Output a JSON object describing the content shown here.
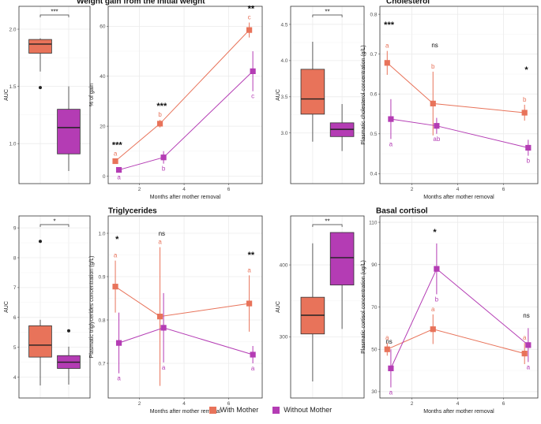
{
  "colors": {
    "with": "#e8735a",
    "without": "#b43cb4",
    "grid": "#ebebeb",
    "frame": "#333333"
  },
  "legend": {
    "with_label": "With Mother",
    "without_label": "Without Mother"
  },
  "shared_xlabel": "Months after mother removal",
  "chart_data": [
    {
      "id": "wg_box",
      "type": "box",
      "ylabel": "AUC",
      "ylim": [
        0.65,
        2.2
      ],
      "yticks": [
        "1.0",
        "1.5",
        "2.0"
      ],
      "ytick_values": [
        1.0,
        1.5,
        2.0
      ],
      "groups": [
        {
          "name": "With Mother",
          "min": 1.63,
          "q1": 1.79,
          "median": 1.87,
          "q3": 1.91,
          "max": 1.92,
          "outliers": [
            1.49
          ]
        },
        {
          "name": "Without Mother",
          "min": 0.76,
          "q1": 0.91,
          "median": 1.14,
          "q3": 1.3,
          "max": 1.5,
          "outliers": []
        }
      ],
      "significance": "***"
    },
    {
      "id": "wg_line",
      "type": "line",
      "title": "Weight gain from the initial weight",
      "ylabel": "% of gain",
      "xlabel": "Months after mother removal",
      "xlim": [
        0.6,
        7.5
      ],
      "ylim": [
        -3,
        68
      ],
      "xticks": [
        "2",
        "4",
        "6"
      ],
      "xtick_values": [
        2,
        4,
        6
      ],
      "yticks": [
        "0",
        "20",
        "40",
        "60"
      ],
      "ytick_values": [
        0,
        20,
        40,
        60
      ],
      "x": [
        1,
        3,
        7
      ],
      "series": [
        {
          "name": "With Mother",
          "values": [
            6,
            21,
            58.5
          ],
          "err": [
            1,
            1.5,
            3
          ],
          "letters": [
            "a",
            "b",
            "c"
          ]
        },
        {
          "name": "Without Mother",
          "values": [
            2.5,
            7.5,
            42
          ],
          "err": [
            1,
            2.5,
            8
          ],
          "letters": [
            "a",
            "b",
            "c"
          ]
        }
      ],
      "stars": [
        "***",
        "***",
        "**"
      ]
    },
    {
      "id": "chol_box",
      "type": "box",
      "ylabel": "AUC",
      "ylim": [
        2.3,
        4.75
      ],
      "yticks": [
        "3.0",
        "3.5",
        "4.0",
        "4.5"
      ],
      "ytick_values": [
        3.0,
        3.5,
        4.0,
        4.5
      ],
      "groups": [
        {
          "name": "With Mother",
          "min": 2.88,
          "q1": 3.26,
          "median": 3.47,
          "q3": 3.88,
          "max": 4.26,
          "outliers": []
        },
        {
          "name": "Without Mother",
          "min": 2.75,
          "q1": 2.95,
          "median": 3.05,
          "q3": 3.14,
          "max": 3.4,
          "outliers": []
        }
      ],
      "significance": "**"
    },
    {
      "id": "chol_line",
      "type": "line",
      "title": "Cholesterol",
      "ylabel": "Plasmatic cholesterol concentration (g/L)",
      "xlabel": "Months after mother removal",
      "xlim": [
        0.6,
        7.5
      ],
      "ylim": [
        0.375,
        0.82
      ],
      "xticks": [
        "2",
        "4",
        "6"
      ],
      "xtick_values": [
        2,
        4,
        6
      ],
      "yticks": [
        "0.4",
        "0.5",
        "0.6",
        "0.7",
        "0.8"
      ],
      "ytick_values": [
        0.4,
        0.5,
        0.6,
        0.7,
        0.8
      ],
      "x": [
        1,
        3,
        7
      ],
      "series": [
        {
          "name": "With Mother",
          "values": [
            0.678,
            0.576,
            0.553
          ],
          "err": [
            0.03,
            0.08,
            0.02
          ],
          "letters": [
            "a",
            "b",
            "b"
          ]
        },
        {
          "name": "Without Mother",
          "values": [
            0.537,
            0.52,
            0.465
          ],
          "err": [
            0.05,
            0.02,
            0.02
          ],
          "letters": [
            "a",
            "ab",
            "b"
          ]
        }
      ],
      "stars": [
        "***",
        "ns",
        "*"
      ]
    },
    {
      "id": "tg_box",
      "type": "box",
      "ylabel": "AUC",
      "ylim": [
        3.3,
        9.4
      ],
      "yticks": [
        "4",
        "5",
        "6",
        "7",
        "8",
        "9"
      ],
      "ytick_values": [
        4,
        5,
        6,
        7,
        8,
        9
      ],
      "groups": [
        {
          "name": "With Mother",
          "min": 3.72,
          "q1": 4.67,
          "median": 5.07,
          "q3": 5.72,
          "max": 5.92,
          "outliers": [
            8.55
          ]
        },
        {
          "name": "Without Mother",
          "min": 3.75,
          "q1": 4.29,
          "median": 4.5,
          "q3": 4.72,
          "max": 5.02,
          "outliers": [
            5.55
          ]
        }
      ],
      "significance": "*"
    },
    {
      "id": "tg_line",
      "type": "line",
      "title": "Triglycerides",
      "ylabel": "Plasmatic triglycerides concentration (g/L)",
      "xlabel": "Months after mother removal",
      "xlim": [
        0.6,
        7.5
      ],
      "ylim": [
        0.62,
        1.04
      ],
      "xticks": [
        "2",
        "4",
        "6"
      ],
      "xtick_values": [
        2,
        4,
        6
      ],
      "yticks": [
        "0.7",
        "0.8",
        "0.9",
        "1.0"
      ],
      "ytick_values": [
        0.7,
        0.8,
        0.9,
        1.0
      ],
      "x": [
        1,
        3,
        7
      ],
      "series": [
        {
          "name": "With Mother",
          "values": [
            0.877,
            0.808,
            0.838
          ],
          "err": [
            0.06,
            0.16,
            0.065
          ],
          "letters": [
            "a",
            "a",
            "a"
          ]
        },
        {
          "name": "Without Mother",
          "values": [
            0.747,
            0.782,
            0.72
          ],
          "err": [
            0.07,
            0.08,
            0.02
          ],
          "letters": [
            "a",
            "a",
            "a"
          ]
        }
      ],
      "stars": [
        "*",
        "ns",
        "**"
      ]
    },
    {
      "id": "cort_box",
      "type": "box",
      "ylabel": "AUC",
      "ylim": [
        215,
        468
      ],
      "yticks": [
        "300",
        "400"
      ],
      "ytick_values": [
        300,
        400
      ],
      "groups": [
        {
          "name": "With Mother",
          "min": 238,
          "q1": 304,
          "median": 330,
          "q3": 355,
          "max": 430,
          "outliers": []
        },
        {
          "name": "Without Mother",
          "min": 311,
          "q1": 372,
          "median": 410,
          "q3": 445,
          "max": 445,
          "outliers": []
        }
      ],
      "significance": "**"
    },
    {
      "id": "cort_line",
      "type": "line",
      "title": "Basal cortisol",
      "ylabel": "Plasmatic cortisol concentration (ug/L)",
      "xlabel": "Months after mother removal",
      "xlim": [
        0.6,
        7.5
      ],
      "ylim": [
        27,
        113
      ],
      "xticks": [
        "2",
        "4",
        "6"
      ],
      "xtick_values": [
        2,
        4,
        6
      ],
      "yticks": [
        "30",
        "50",
        "70",
        "90",
        "110"
      ],
      "ytick_values": [
        30,
        50,
        70,
        90,
        110
      ],
      "x": [
        1,
        3,
        7
      ],
      "series": [
        {
          "name": "With Mother",
          "values": [
            50,
            59.5,
            48
          ],
          "err": [
            3,
            7,
            5
          ],
          "letters": [
            "a",
            "a",
            "a"
          ]
        },
        {
          "name": "Without Mother",
          "values": [
            41,
            88,
            52
          ],
          "err": [
            9,
            12,
            8
          ],
          "letters": [
            "a",
            "b",
            "a"
          ]
        }
      ],
      "stars": [
        "ns",
        "*",
        "ns"
      ]
    }
  ]
}
